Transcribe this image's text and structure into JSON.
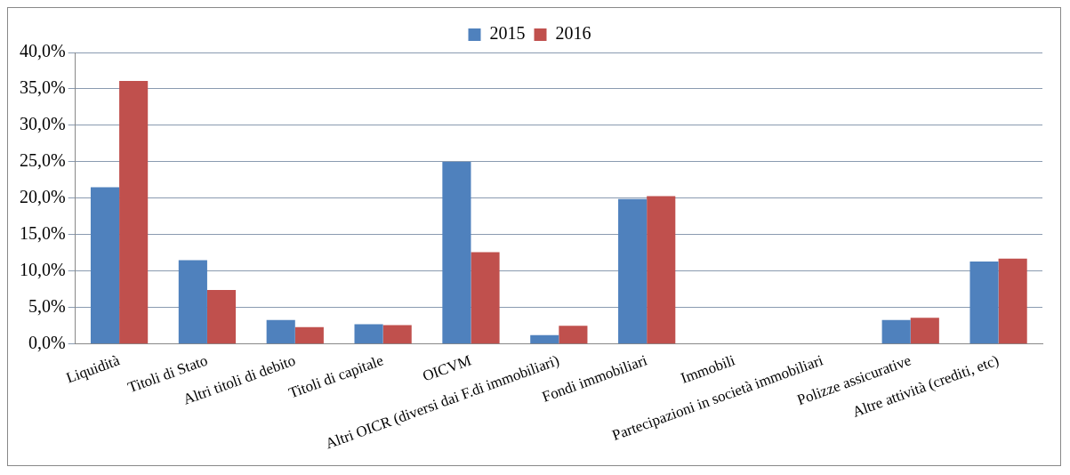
{
  "chart_data": {
    "type": "bar",
    "categories": [
      "Liquidità",
      "Titoli di Stato",
      "Altri titoli di debito",
      "Titoli di capitale",
      "OICVM",
      "Altri OICR (diversi dai F.di immobiliari)",
      "Fondi immobiliari",
      "Immobili",
      "Partecipazioni in società immobiliari",
      "Polizze assicurative",
      "Altre attività (crediti, etc)"
    ],
    "series": [
      {
        "name": "2015",
        "color": "#4f81bd",
        "values": [
          21.5,
          11.5,
          3.3,
          2.7,
          25.0,
          1.2,
          19.9,
          0,
          0,
          3.3,
          11.3
        ]
      },
      {
        "name": "2016",
        "color": "#c0504d",
        "values": [
          36.1,
          7.4,
          2.3,
          2.6,
          12.6,
          2.5,
          20.3,
          0,
          0,
          3.6,
          11.7
        ]
      }
    ],
    "ylim": [
      0,
      40
    ],
    "yticks": [
      {
        "value": 0,
        "label": "0,0%"
      },
      {
        "value": 5,
        "label": "5,0%"
      },
      {
        "value": 10,
        "label": "10,0%"
      },
      {
        "value": 15,
        "label": "15,0%"
      },
      {
        "value": 20,
        "label": "20,0%"
      },
      {
        "value": 25,
        "label": "25,0%"
      },
      {
        "value": 30,
        "label": "30,0%"
      },
      {
        "value": 35,
        "label": "35,0%"
      },
      {
        "value": 40,
        "label": "40,0%"
      }
    ],
    "grid": "y",
    "legend": "top"
  }
}
